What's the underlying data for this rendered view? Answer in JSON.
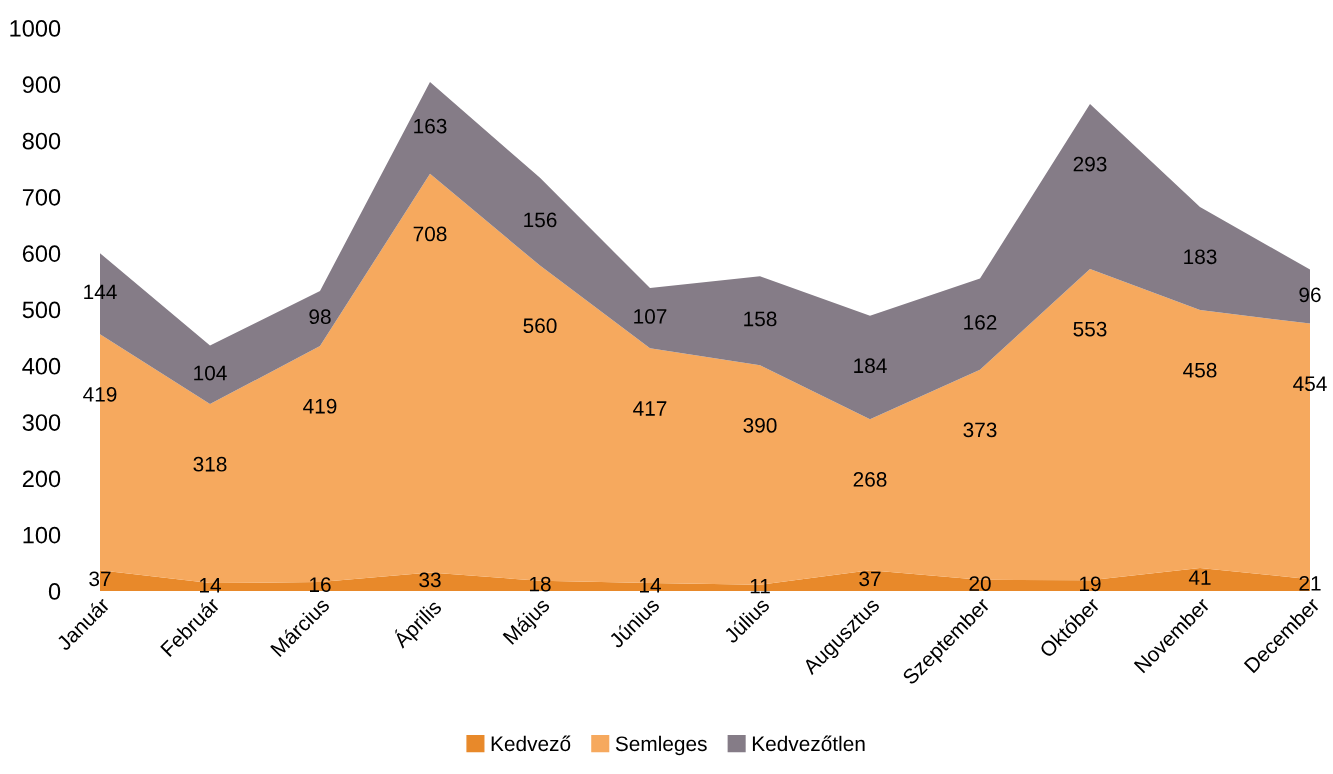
{
  "chart_data": {
    "type": "area",
    "stacked": true,
    "categories": [
      "Január",
      "Február",
      "Március",
      "Április",
      "Május",
      "Június",
      "Július",
      "Augusztus",
      "Szeptember",
      "Október",
      "November",
      "December"
    ],
    "series": [
      {
        "name": "Kedvező",
        "color": "#e8892a",
        "values": [
          37,
          14,
          16,
          33,
          18,
          14,
          11,
          37,
          20,
          19,
          41,
          21
        ]
      },
      {
        "name": "Semleges",
        "color": "#f6a95e",
        "values": [
          419,
          318,
          419,
          708,
          560,
          417,
          390,
          268,
          373,
          553,
          458,
          454
        ]
      },
      {
        "name": "Kedvezőtlen",
        "color": "#857c87",
        "values": [
          144,
          104,
          98,
          163,
          156,
          107,
          158,
          184,
          162,
          293,
          183,
          96
        ]
      }
    ],
    "ylim": [
      0,
      1000
    ],
    "yticks": [
      0,
      100,
      200,
      300,
      400,
      500,
      600,
      700,
      800,
      900,
      1000
    ],
    "data_labels": true,
    "grid": false,
    "legend": "bottom"
  }
}
